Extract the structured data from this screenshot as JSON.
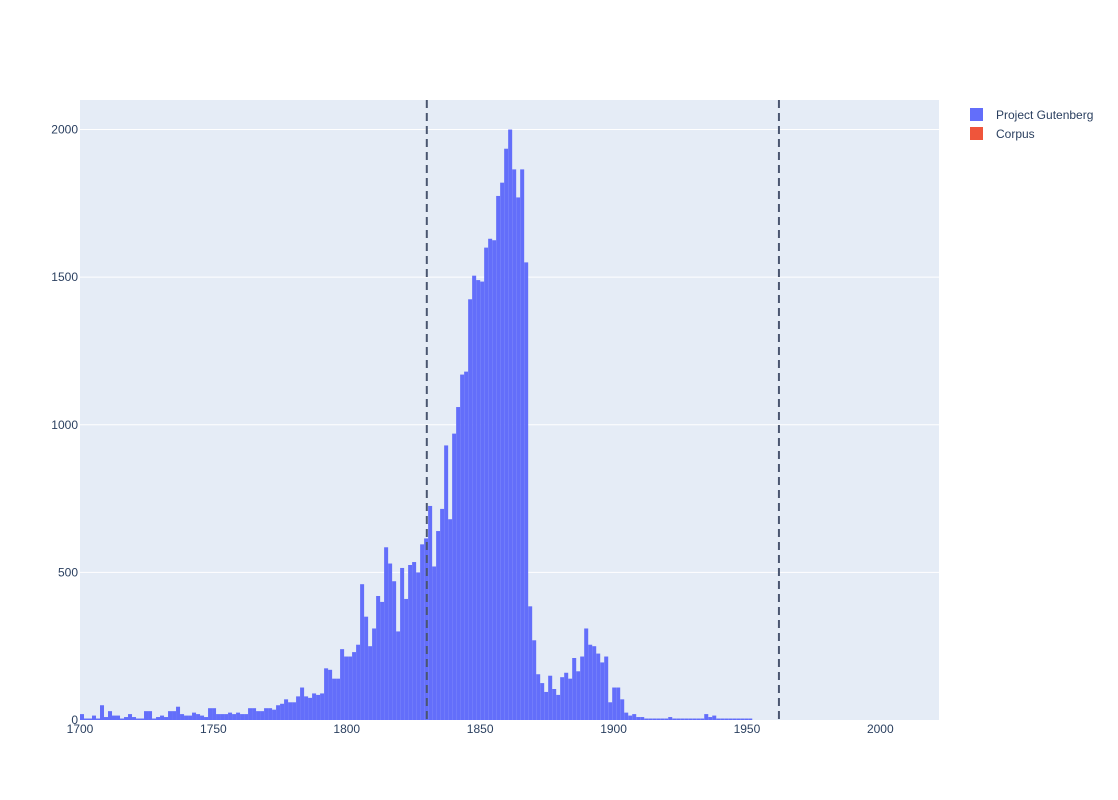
{
  "chart_data": {
    "type": "bar",
    "barmode": "overlay",
    "bin_width_years": 1.5,
    "x_start": 1700,
    "xlim": [
      1700,
      2022
    ],
    "ylim": [
      0,
      2100
    ],
    "x_ticks": [
      1700,
      1750,
      1800,
      1850,
      1900,
      1950,
      2000
    ],
    "y_ticks": [
      0,
      500,
      1000,
      1500,
      2000
    ],
    "grid": true,
    "legend_position": "top-right",
    "vlines": [
      1830,
      1962
    ],
    "colors": {
      "plot_bg": "#e5ecf6",
      "grid": "#ffffff",
      "axis_text": "#2a3f5f",
      "vline": "#4a5670"
    },
    "series": [
      {
        "name": "Project Gutenberg",
        "color": "#636efa",
        "values": [
          20,
          5,
          5,
          15,
          5,
          50,
          10,
          30,
          15,
          15,
          5,
          10,
          20,
          10,
          5,
          5,
          30,
          30,
          5,
          10,
          15,
          10,
          30,
          30,
          45,
          20,
          15,
          15,
          25,
          20,
          15,
          10,
          40,
          40,
          20,
          20,
          20,
          25,
          20,
          25,
          20,
          20,
          40,
          40,
          30,
          30,
          40,
          40,
          35,
          50,
          55,
          70,
          60,
          60,
          80,
          110,
          80,
          75,
          90,
          85,
          90,
          175,
          170,
          140,
          140,
          240,
          215,
          215,
          230,
          255,
          460,
          350,
          250,
          310,
          420,
          400,
          585,
          530,
          470,
          300,
          515,
          410,
          525,
          535,
          500,
          595,
          615,
          725,
          520,
          640,
          715,
          930,
          680,
          970,
          1060,
          1170,
          1180,
          1425,
          1505,
          1490,
          1485,
          1600,
          1630,
          1625,
          1775,
          1820,
          1935,
          2000,
          1865,
          1770,
          1865,
          1550,
          385,
          270,
          155,
          125,
          95,
          150,
          105,
          85,
          145,
          160,
          140,
          210,
          165,
          215,
          310,
          255,
          250,
          225,
          195,
          215,
          60,
          110,
          110,
          70,
          25,
          15,
          20,
          10,
          10,
          5,
          5,
          5,
          5,
          5,
          5,
          10,
          5,
          5,
          5,
          5,
          5,
          5,
          5,
          5,
          20,
          10,
          15,
          5,
          5,
          5,
          5,
          5,
          5,
          5,
          5,
          5
        ]
      },
      {
        "name": "Corpus",
        "color": "#ef553b",
        "values": [
          0,
          0,
          0,
          0,
          0,
          0,
          0,
          0,
          0,
          0,
          0,
          0,
          0,
          0,
          0,
          0,
          0,
          0,
          0,
          0,
          0,
          0,
          0,
          0,
          0,
          0,
          0,
          0,
          0,
          0,
          0,
          0,
          0,
          0,
          0,
          0,
          0,
          0,
          0,
          0,
          0,
          0,
          0,
          0,
          0,
          0,
          0,
          0,
          0,
          0,
          0,
          0,
          0,
          0,
          0,
          0,
          0,
          0,
          0,
          0,
          0,
          0,
          0,
          0,
          0,
          0,
          0,
          0,
          0,
          0,
          0,
          0,
          0,
          0,
          0,
          0,
          0,
          0,
          0,
          0,
          0,
          0,
          0,
          0,
          0,
          0,
          0,
          0,
          0,
          0,
          0,
          0,
          0,
          0,
          0,
          0,
          0,
          0,
          0,
          0,
          0,
          0,
          0,
          0,
          0,
          0,
          0,
          0,
          0,
          0,
          0,
          0,
          0,
          0,
          0,
          0,
          0,
          0,
          0,
          0,
          0,
          0,
          0,
          0,
          0,
          0,
          0,
          0,
          0,
          0,
          0,
          0,
          0,
          0,
          0,
          0,
          0,
          0,
          0,
          0,
          0,
          0,
          0,
          0,
          0,
          0,
          0,
          0,
          0,
          0,
          0,
          0,
          0,
          0,
          0,
          0,
          0,
          0,
          0,
          0,
          0,
          0,
          0,
          0,
          0,
          0,
          0,
          0,
          0,
          0,
          0,
          0,
          0,
          0,
          0,
          0,
          0,
          0,
          0,
          0,
          0,
          0,
          0,
          0,
          0,
          0,
          0,
          0,
          0,
          0,
          0,
          0,
          0,
          0,
          0,
          0,
          0,
          0,
          0,
          0,
          0,
          0,
          0,
          0,
          0,
          0,
          0,
          0,
          0,
          0,
          0,
          0,
          0,
          0,
          0,
          0,
          0
        ]
      }
    ]
  }
}
